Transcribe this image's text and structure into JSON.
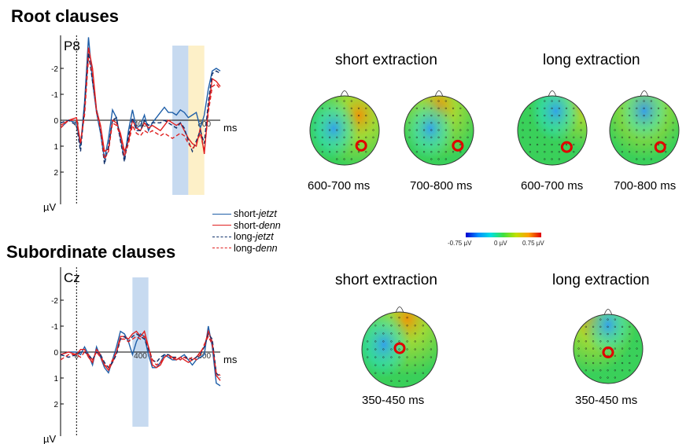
{
  "sections": {
    "root_title": "Root clauses",
    "sub_title": "Subordinate clauses"
  },
  "legend": [
    {
      "prefix": "short-",
      "word": "jetzt",
      "color": "#1f5fa8",
      "dash": "solid"
    },
    {
      "prefix": "short-",
      "word": "denn",
      "color": "#e02020",
      "dash": "solid"
    },
    {
      "prefix": "long-",
      "word": "jetzt",
      "color": "#10306a",
      "dash": "dashed"
    },
    {
      "prefix": "long-",
      "word": "denn",
      "color": "#e02020",
      "dash": "dashed"
    }
  ],
  "colorbar": {
    "min_label": "-0.75 µV",
    "mid_label": "0 µV",
    "max_label": "0.75 µV"
  },
  "topomaps": {
    "root": {
      "short_title": "short extraction",
      "long_title": "long extraction",
      "time_labels": [
        "600-700 ms",
        "700-800 ms",
        "600-700 ms",
        "700-800 ms"
      ]
    },
    "sub": {
      "short_title": "short extraction",
      "long_title": "long extraction",
      "time_labels": [
        "350-450 ms",
        "350-450 ms"
      ]
    }
  },
  "chart_data": [
    {
      "type": "line",
      "title": "P8",
      "xlabel": "ms",
      "ylabel": "µV",
      "xlim": [
        -100,
        900
      ],
      "ylim": [
        -3,
        3
      ],
      "y_inverted": true,
      "x_ticks": [
        "0",
        "400",
        "800"
      ],
      "y_ticks": [
        "-2",
        "-1",
        "0",
        "1",
        "2"
      ],
      "highlight_windows": [
        {
          "range": [
            600,
            700
          ],
          "color": "#c7daf0"
        },
        {
          "range": [
            700,
            800
          ],
          "color": "#fdf0c8"
        }
      ],
      "x": [
        -100,
        -50,
        0,
        25,
        50,
        75,
        100,
        125,
        150,
        175,
        200,
        225,
        250,
        275,
        300,
        325,
        350,
        375,
        400,
        425,
        450,
        475,
        500,
        525,
        550,
        575,
        600,
        625,
        650,
        675,
        700,
        725,
        750,
        775,
        800,
        825,
        850,
        875,
        900
      ],
      "series": [
        {
          "name": "short-jetzt",
          "values": [
            0.3,
            0,
            0.1,
            1.0,
            -0.7,
            -3.2,
            -1.5,
            -0.3,
            0.5,
            1.5,
            0.7,
            -0.4,
            -0.1,
            0.7,
            1.5,
            0.4,
            -0.4,
            0.3,
            0.2,
            -0.2,
            0.4,
            0.1,
            -0.1,
            -0.3,
            -0.5,
            -0.3,
            -0.3,
            -0.2,
            -0.4,
            -0.3,
            -0.1,
            -0.2,
            -0.3,
            0.3,
            -0.2,
            -1.2,
            -1.9,
            -2.0,
            -1.9
          ]
        },
        {
          "name": "short-denn",
          "values": [
            0.2,
            0,
            -0.1,
            0.9,
            -0.4,
            -2.8,
            -2.0,
            -0.4,
            0.2,
            1.2,
            1.1,
            0,
            0.1,
            0.5,
            1.2,
            0.8,
            0,
            0.3,
            0.4,
            0.1,
            0.3,
            0.2,
            0.3,
            0.4,
            0.2,
            0,
            0.1,
            0.2,
            0.1,
            0.4,
            0.7,
            0.9,
            1.0,
            0.3,
            1.3,
            -0.5,
            -1.6,
            -1.5,
            -1.3
          ]
        },
        {
          "name": "long-jetzt",
          "values": [
            0.1,
            0,
            0.2,
            1.2,
            -0.5,
            -2.6,
            -1.5,
            -0.4,
            0.4,
            1.7,
            1.0,
            0,
            -0.1,
            0.8,
            1.6,
            0.6,
            -0.1,
            0.4,
            0.4,
            0,
            0.2,
            0.1,
            0.1,
            0.1,
            0,
            0.1,
            0.2,
            0.3,
            0.1,
            0.3,
            0.8,
            1.2,
            0.8,
            0.4,
            0.9,
            -0.7,
            -1.8,
            -1.9,
            -1.8
          ]
        },
        {
          "name": "long-denn",
          "values": [
            0.3,
            0,
            0,
            0.9,
            -0.2,
            -2.4,
            -1.8,
            -0.3,
            0.3,
            1.5,
            1.2,
            0.1,
            0.2,
            0.6,
            1.4,
            0.9,
            0.2,
            0.5,
            0.6,
            0.4,
            0.5,
            0.4,
            0.5,
            0.6,
            0.5,
            0.6,
            0.7,
            0.6,
            0.5,
            0.6,
            0.9,
            1.1,
            0.9,
            0.5,
            1.2,
            -0.3,
            -1.3,
            -1.4,
            -1.2
          ]
        }
      ]
    },
    {
      "type": "line",
      "title": "Cz",
      "xlabel": "ms",
      "ylabel": "µV",
      "xlim": [
        -100,
        900
      ],
      "ylim": [
        -3,
        3
      ],
      "y_inverted": true,
      "x_ticks": [
        "0",
        "400",
        "800"
      ],
      "y_ticks": [
        "-2",
        "-1",
        "0",
        "1",
        "2"
      ],
      "highlight_windows": [
        {
          "range": [
            350,
            450
          ],
          "color": "#c7daf0"
        }
      ],
      "x": [
        -100,
        -50,
        0,
        25,
        50,
        75,
        100,
        125,
        150,
        175,
        200,
        225,
        250,
        275,
        300,
        325,
        350,
        375,
        400,
        425,
        450,
        475,
        500,
        525,
        550,
        575,
        600,
        625,
        650,
        675,
        700,
        725,
        750,
        775,
        800,
        825,
        850,
        875,
        900
      ],
      "series": [
        {
          "name": "short-jetzt",
          "values": [
            0.1,
            0,
            0,
            0.1,
            -0.2,
            0.1,
            0.5,
            -0.2,
            0.2,
            0.6,
            0.8,
            0.3,
            -0.2,
            -0.8,
            -0.7,
            -0.4,
            0.1,
            -0.4,
            -0.7,
            -0.6,
            0.1,
            0.6,
            0.6,
            0.4,
            0.1,
            0.2,
            0.3,
            0.3,
            0.2,
            0.1,
            0.3,
            0.5,
            0.3,
            0.2,
            0.1,
            -1.0,
            -0.2,
            1.2,
            1.3
          ]
        },
        {
          "name": "short-denn",
          "values": [
            0.1,
            0,
            0.1,
            -0.1,
            -0.1,
            0.2,
            0.4,
            -0.1,
            0.1,
            0.5,
            0.7,
            0.4,
            0,
            -0.6,
            -0.6,
            -0.5,
            -0.7,
            -0.8,
            -0.6,
            -0.8,
            -0.2,
            0.5,
            0.6,
            0.5,
            0.2,
            0.1,
            0.2,
            0.3,
            0.2,
            0.3,
            0.4,
            0.3,
            0.2,
            0,
            -0.2,
            -0.8,
            -0.4,
            0.9,
            1.1
          ]
        },
        {
          "name": "long-jetzt",
          "values": [
            0.1,
            0.2,
            0.1,
            0,
            0,
            0.1,
            0.3,
            0,
            0.1,
            0.4,
            0.6,
            0.4,
            0.1,
            -0.5,
            -0.6,
            -0.4,
            -0.6,
            -0.7,
            -0.6,
            -0.5,
            -0.1,
            0.3,
            0.4,
            0.2,
            0.1,
            0.1,
            0.2,
            0.2,
            0.3,
            0.2,
            0.2,
            0.3,
            0.2,
            0.1,
            -0.2,
            -0.7,
            -0.5,
            0.8,
            1.0
          ]
        },
        {
          "name": "long-denn",
          "values": [
            0.3,
            0.1,
            0.1,
            0.2,
            0,
            0.1,
            0.3,
            0,
            0.2,
            0.5,
            0.6,
            0.3,
            0,
            -0.5,
            -0.5,
            -0.4,
            -0.5,
            -0.6,
            -0.5,
            -0.6,
            -0.2,
            0.3,
            0.5,
            0.4,
            0.2,
            0.1,
            0.3,
            0.2,
            0.3,
            0.2,
            0.3,
            0.2,
            0.3,
            0.1,
            -0.3,
            -0.6,
            -0.3,
            0.8,
            0.9
          ]
        }
      ]
    }
  ]
}
